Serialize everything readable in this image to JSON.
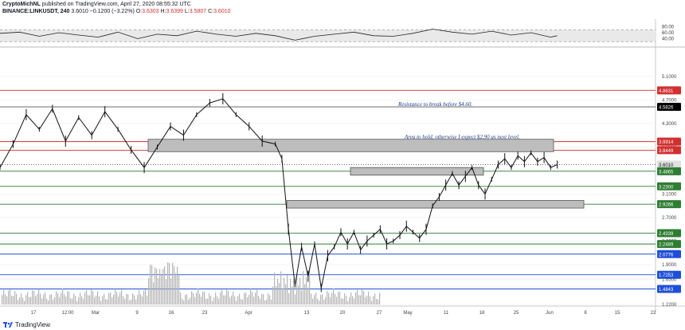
{
  "header": {
    "publisher": "CryptoMichNL",
    "published_text": "published on TradingView.com, April 27, 2020 08:55:32 UTC",
    "symbol": "BINANCE:LINKUSDT, 240",
    "last": "3.6010",
    "change": "−0.1200 (−3.22%)",
    "o_label": "O:",
    "o_value": "3.6303",
    "h_label": "H:",
    "h_value": "3.6399",
    "l_label": "L:",
    "l_value": "3.5807",
    "c_label": "C:",
    "c_value": "3.6010"
  },
  "footer": {
    "brand": "TradingView"
  },
  "chart_data": {
    "type": "line",
    "price_axis_ticks": [
      "5.1000",
      "4.7000",
      "4.3000",
      "3.9000",
      "3.5000",
      "3.1000",
      "2.7000",
      "2.3000",
      "1.9000",
      "1.6500",
      "1.5200",
      "1.2200"
    ],
    "rsi_axis_ticks": [
      "80.00",
      "60.00",
      "40.00"
    ],
    "time_axis_ticks": [
      "17",
      "12:00",
      "Mar",
      "9",
      "16",
      "23",
      "Apr",
      "13",
      "20",
      "27",
      "May",
      "11",
      "18",
      "25",
      "Jun",
      "8",
      "15",
      "22"
    ],
    "price_levels": [
      {
        "label": "4.8631",
        "color": "#d32f2f"
      },
      {
        "label": "4.5826",
        "color": "#000000"
      },
      {
        "label": "3.9914",
        "color": "#d32f2f"
      },
      {
        "label": "3.8449",
        "color": "#d32f2f"
      },
      {
        "label": "3.6010",
        "color": "#d8d8d8"
      },
      {
        "label": "03:04:29",
        "color": "#d8d8d8"
      },
      {
        "label": "3.4865",
        "color": "#2e7d32"
      },
      {
        "label": "3.2300",
        "color": "#2e7d32"
      },
      {
        "label": "2.9266",
        "color": "#2e7d32"
      },
      {
        "label": "2.4339",
        "color": "#2e7d32"
      },
      {
        "label": "2.2489",
        "color": "#2e7d32"
      },
      {
        "label": "2.0776",
        "color": "#1e4fd8"
      },
      {
        "label": "1.7253",
        "color": "#1e4fd8"
      },
      {
        "label": "1.4843",
        "color": "#1e4fd8"
      }
    ],
    "annotations": [
      "Resistance to break before $4.60.",
      "Area to hold, otherwise I expect $2.90 as next level."
    ],
    "price_path": [
      [
        0,
        3.55
      ],
      [
        0.02,
        3.95
      ],
      [
        0.04,
        4.45
      ],
      [
        0.06,
        4.2
      ],
      [
        0.08,
        4.55
      ],
      [
        0.1,
        4.0
      ],
      [
        0.12,
        4.4
      ],
      [
        0.14,
        4.1
      ],
      [
        0.16,
        4.5
      ],
      [
        0.18,
        4.2
      ],
      [
        0.2,
        3.85
      ],
      [
        0.22,
        3.55
      ],
      [
        0.24,
        3.9
      ],
      [
        0.26,
        4.25
      ],
      [
        0.28,
        4.1
      ],
      [
        0.3,
        4.45
      ],
      [
        0.32,
        4.65
      ],
      [
        0.34,
        4.72
      ],
      [
        0.36,
        4.45
      ],
      [
        0.38,
        4.25
      ],
      [
        0.4,
        4.0
      ],
      [
        0.42,
        3.95
      ],
      [
        0.43,
        3.7
      ],
      [
        0.44,
        2.5
      ],
      [
        0.45,
        1.55
      ],
      [
        0.46,
        2.2
      ],
      [
        0.47,
        1.7
      ],
      [
        0.48,
        2.25
      ],
      [
        0.49,
        1.5
      ],
      [
        0.5,
        2.05
      ],
      [
        0.51,
        2.2
      ],
      [
        0.52,
        2.45
      ],
      [
        0.53,
        2.25
      ],
      [
        0.54,
        2.45
      ],
      [
        0.55,
        2.15
      ],
      [
        0.56,
        2.3
      ],
      [
        0.57,
        2.4
      ],
      [
        0.58,
        2.5
      ],
      [
        0.59,
        2.25
      ],
      [
        0.6,
        2.3
      ],
      [
        0.61,
        2.4
      ],
      [
        0.62,
        2.55
      ],
      [
        0.63,
        2.45
      ],
      [
        0.64,
        2.35
      ],
      [
        0.65,
        2.5
      ],
      [
        0.66,
        2.9
      ],
      [
        0.67,
        3.05
      ],
      [
        0.68,
        3.25
      ],
      [
        0.69,
        3.45
      ],
      [
        0.7,
        3.25
      ],
      [
        0.71,
        3.4
      ],
      [
        0.72,
        3.55
      ],
      [
        0.73,
        3.25
      ],
      [
        0.74,
        3.1
      ],
      [
        0.75,
        3.35
      ],
      [
        0.76,
        3.6
      ],
      [
        0.77,
        3.7
      ],
      [
        0.78,
        3.55
      ],
      [
        0.79,
        3.75
      ],
      [
        0.8,
        3.65
      ],
      [
        0.81,
        3.8
      ],
      [
        0.82,
        3.65
      ],
      [
        0.83,
        3.72
      ],
      [
        0.84,
        3.55
      ],
      [
        0.85,
        3.6
      ]
    ],
    "rsi_path": [
      [
        0,
        58
      ],
      [
        0.03,
        62
      ],
      [
        0.06,
        48
      ],
      [
        0.09,
        60
      ],
      [
        0.12,
        52
      ],
      [
        0.15,
        45
      ],
      [
        0.18,
        62
      ],
      [
        0.21,
        40
      ],
      [
        0.24,
        55
      ],
      [
        0.27,
        50
      ],
      [
        0.3,
        65
      ],
      [
        0.33,
        55
      ],
      [
        0.36,
        48
      ],
      [
        0.39,
        58
      ],
      [
        0.42,
        50
      ],
      [
        0.45,
        35
      ],
      [
        0.48,
        48
      ],
      [
        0.51,
        55
      ],
      [
        0.54,
        62
      ],
      [
        0.57,
        50
      ],
      [
        0.6,
        48
      ],
      [
        0.63,
        58
      ],
      [
        0.66,
        72
      ],
      [
        0.69,
        62
      ],
      [
        0.72,
        55
      ],
      [
        0.75,
        65
      ],
      [
        0.78,
        52
      ],
      [
        0.81,
        60
      ],
      [
        0.84,
        45
      ],
      [
        0.85,
        50
      ]
    ]
  }
}
